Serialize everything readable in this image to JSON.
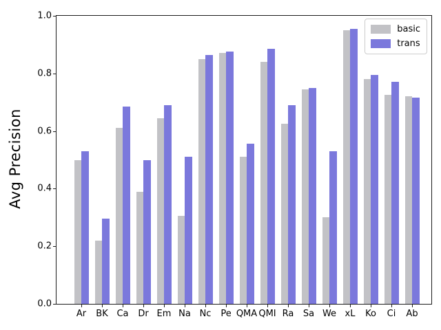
{
  "chart_data": {
    "type": "bar",
    "title": "",
    "xlabel": "",
    "ylabel": "Avg Precision",
    "ylim": [
      0.0,
      1.0
    ],
    "yticks": [
      0.0,
      0.2,
      0.4,
      0.6,
      0.8,
      1.0
    ],
    "grid": false,
    "legend_position": "upper right",
    "categories": [
      "Ar",
      "BK",
      "Ca",
      "Dr",
      "Em",
      "Na",
      "Nc",
      "Pe",
      "QMA",
      "QMI",
      "Ra",
      "Sa",
      "We",
      "xL",
      "Ko",
      "Ci",
      "Ab"
    ],
    "series": [
      {
        "name": "basic",
        "color": "#c2c2c6",
        "values": [
          0.5,
          0.22,
          0.61,
          0.39,
          0.645,
          0.305,
          0.85,
          0.87,
          0.51,
          0.84,
          0.625,
          0.745,
          0.3,
          0.95,
          0.78,
          0.725,
          0.72
        ]
      },
      {
        "name": "trans",
        "color": "#7b78dc",
        "values": [
          0.53,
          0.295,
          0.685,
          0.5,
          0.69,
          0.51,
          0.865,
          0.875,
          0.555,
          0.885,
          0.69,
          0.75,
          0.53,
          0.955,
          0.795,
          0.77,
          0.715
        ]
      }
    ]
  }
}
